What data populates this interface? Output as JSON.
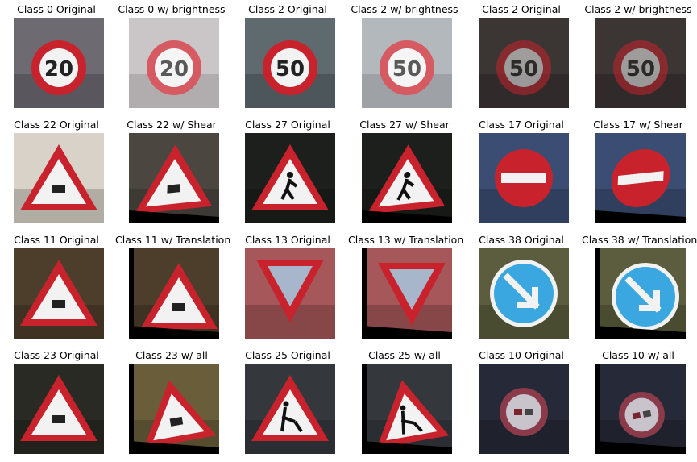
{
  "grid": {
    "rows": [
      [
        {
          "title": "Class 0 Original",
          "sign": "speed-limit-20-sign",
          "icon": "speed-limit-icon",
          "text": "20",
          "variant": "original"
        },
        {
          "title": "Class 0 w/ brightness",
          "sign": "speed-limit-20-sign",
          "icon": "speed-limit-icon",
          "text": "20",
          "variant": "brightness"
        },
        {
          "title": "Class 2 Original",
          "sign": "speed-limit-50-sign",
          "icon": "speed-limit-icon",
          "text": "50",
          "variant": "original"
        },
        {
          "title": "Class 2 w/ brightness",
          "sign": "speed-limit-50-sign",
          "icon": "speed-limit-icon",
          "text": "50",
          "variant": "brightness"
        },
        {
          "title": "Class 2 Original",
          "sign": "speed-limit-50-sign",
          "icon": "speed-limit-icon",
          "text": "50",
          "variant": "original-dark"
        },
        {
          "title": "Class 2 w/ brightness",
          "sign": "speed-limit-50-sign",
          "icon": "speed-limit-icon",
          "text": "50",
          "variant": "brightness-dark"
        }
      ],
      [
        {
          "title": "Class 22 Original",
          "sign": "bumpy-road-sign",
          "icon": "warning-triangle-icon",
          "variant": "original"
        },
        {
          "title": "Class 22 w/ Shear",
          "sign": "bumpy-road-sign",
          "icon": "warning-triangle-icon",
          "variant": "shear"
        },
        {
          "title": "Class 27 Original",
          "sign": "pedestrians-sign",
          "icon": "pedestrian-triangle-icon",
          "variant": "original"
        },
        {
          "title": "Class 27 w/ Shear",
          "sign": "pedestrians-sign",
          "icon": "pedestrian-triangle-icon",
          "variant": "shear"
        },
        {
          "title": "Class 17 Original",
          "sign": "no-entry-sign",
          "icon": "no-entry-icon",
          "variant": "original"
        },
        {
          "title": "Class 17 w/ Shear",
          "sign": "no-entry-sign",
          "icon": "no-entry-icon",
          "variant": "shear"
        }
      ],
      [
        {
          "title": "Class 11 Original",
          "sign": "right-of-way-sign",
          "icon": "warning-triangle-icon",
          "variant": "original"
        },
        {
          "title": "Class 11 w/ Translation",
          "sign": "right-of-way-sign",
          "icon": "warning-triangle-icon",
          "variant": "translation"
        },
        {
          "title": "Class 13 Original",
          "sign": "yield-sign",
          "icon": "yield-icon",
          "variant": "original"
        },
        {
          "title": "Class 13 w/ Translation",
          "sign": "yield-sign",
          "icon": "yield-icon",
          "variant": "translation"
        },
        {
          "title": "Class 38 Original",
          "sign": "keep-right-sign",
          "icon": "keep-right-arrow-icon",
          "variant": "original"
        },
        {
          "title": "Class 38 w/ Translation",
          "sign": "keep-right-sign",
          "icon": "keep-right-arrow-icon",
          "variant": "translation"
        }
      ],
      [
        {
          "title": "Class 23 Original",
          "sign": "slippery-road-sign",
          "icon": "warning-triangle-icon",
          "variant": "original"
        },
        {
          "title": "Class 23 w/ all",
          "sign": "slippery-road-sign",
          "icon": "warning-triangle-icon",
          "variant": "all"
        },
        {
          "title": "Class 25 Original",
          "sign": "road-work-sign",
          "icon": "road-work-triangle-icon",
          "variant": "original"
        },
        {
          "title": "Class 25 w/ all",
          "sign": "road-work-sign",
          "icon": "road-work-triangle-icon",
          "variant": "all"
        },
        {
          "title": "Class 10 Original",
          "sign": "no-passing-trucks-sign",
          "icon": "no-passing-icon",
          "variant": "original"
        },
        {
          "title": "Class 10 w/ all",
          "sign": "no-passing-trucks-sign",
          "icon": "no-passing-icon",
          "variant": "all"
        }
      ]
    ]
  },
  "colors": {
    "sign_red": "#c8232c",
    "sign_blue": "#3ba7e0",
    "sign_white": "#f2f2f2",
    "black_border": "#000000"
  }
}
